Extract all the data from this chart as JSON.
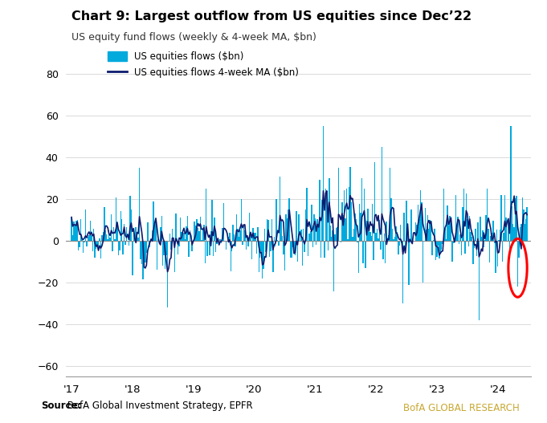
{
  "title": "Chart 9: Largest outflow from US equities since Dec’22",
  "subtitle": "US equity fund flows (weekly & 4-week MA, $bn)",
  "source_bold": "Source:",
  "source_rest": " BofA Global Investment Strategy, EPFR",
  "branding": "BofA GLOBAL RESEARCH",
  "bar_color": "#00AADD",
  "ma_color": "#0D1B6E",
  "zero_line_color": "#888888",
  "background_color": "#FFFFFF",
  "ylim": [
    -65,
    90
  ],
  "yticks": [
    -60,
    -40,
    -20,
    0,
    20,
    40,
    60,
    80
  ],
  "legend_bar_label": "US equities flows ($bn)",
  "legend_ma_label": "US equities flows 4-week MA ($bn)",
  "circle_color": "red",
  "xtick_labels": [
    "'17",
    "'18",
    "'19",
    "'20",
    "'21",
    "'22",
    "'23",
    "'24"
  ],
  "blue_bar_color": "#1A5EA8"
}
